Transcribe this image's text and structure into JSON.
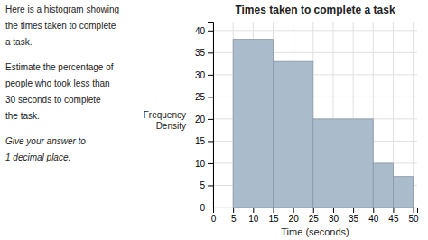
{
  "chart_data": {
    "type": "histogram",
    "title": "Times taken to complete a task",
    "xlabel": "Time (seconds)",
    "ylabel": "Frequency\nDensity",
    "bins": [
      5,
      15,
      25,
      40,
      45,
      50
    ],
    "values": [
      38,
      33,
      20,
      10,
      7
    ],
    "color": "#aabbcc",
    "xlim": [
      0,
      51
    ],
    "ylim": [
      0,
      42
    ],
    "xticks": [
      0,
      5,
      10,
      15,
      20,
      25,
      30,
      35,
      40,
      45,
      50
    ],
    "yticks": [
      0,
      5,
      10,
      15,
      20,
      25,
      30,
      35,
      40
    ],
    "grid": true,
    "annotations": [
      [
        "Here is a histogram showing",
        "the times taken to complete",
        "a task."
      ],
      [
        "Estimate the percentage of",
        "people who took less than",
        "30 seconds to complete",
        "the task."
      ],
      [
        "Give your answer to",
        "1 decimal place."
      ]
    ]
  }
}
